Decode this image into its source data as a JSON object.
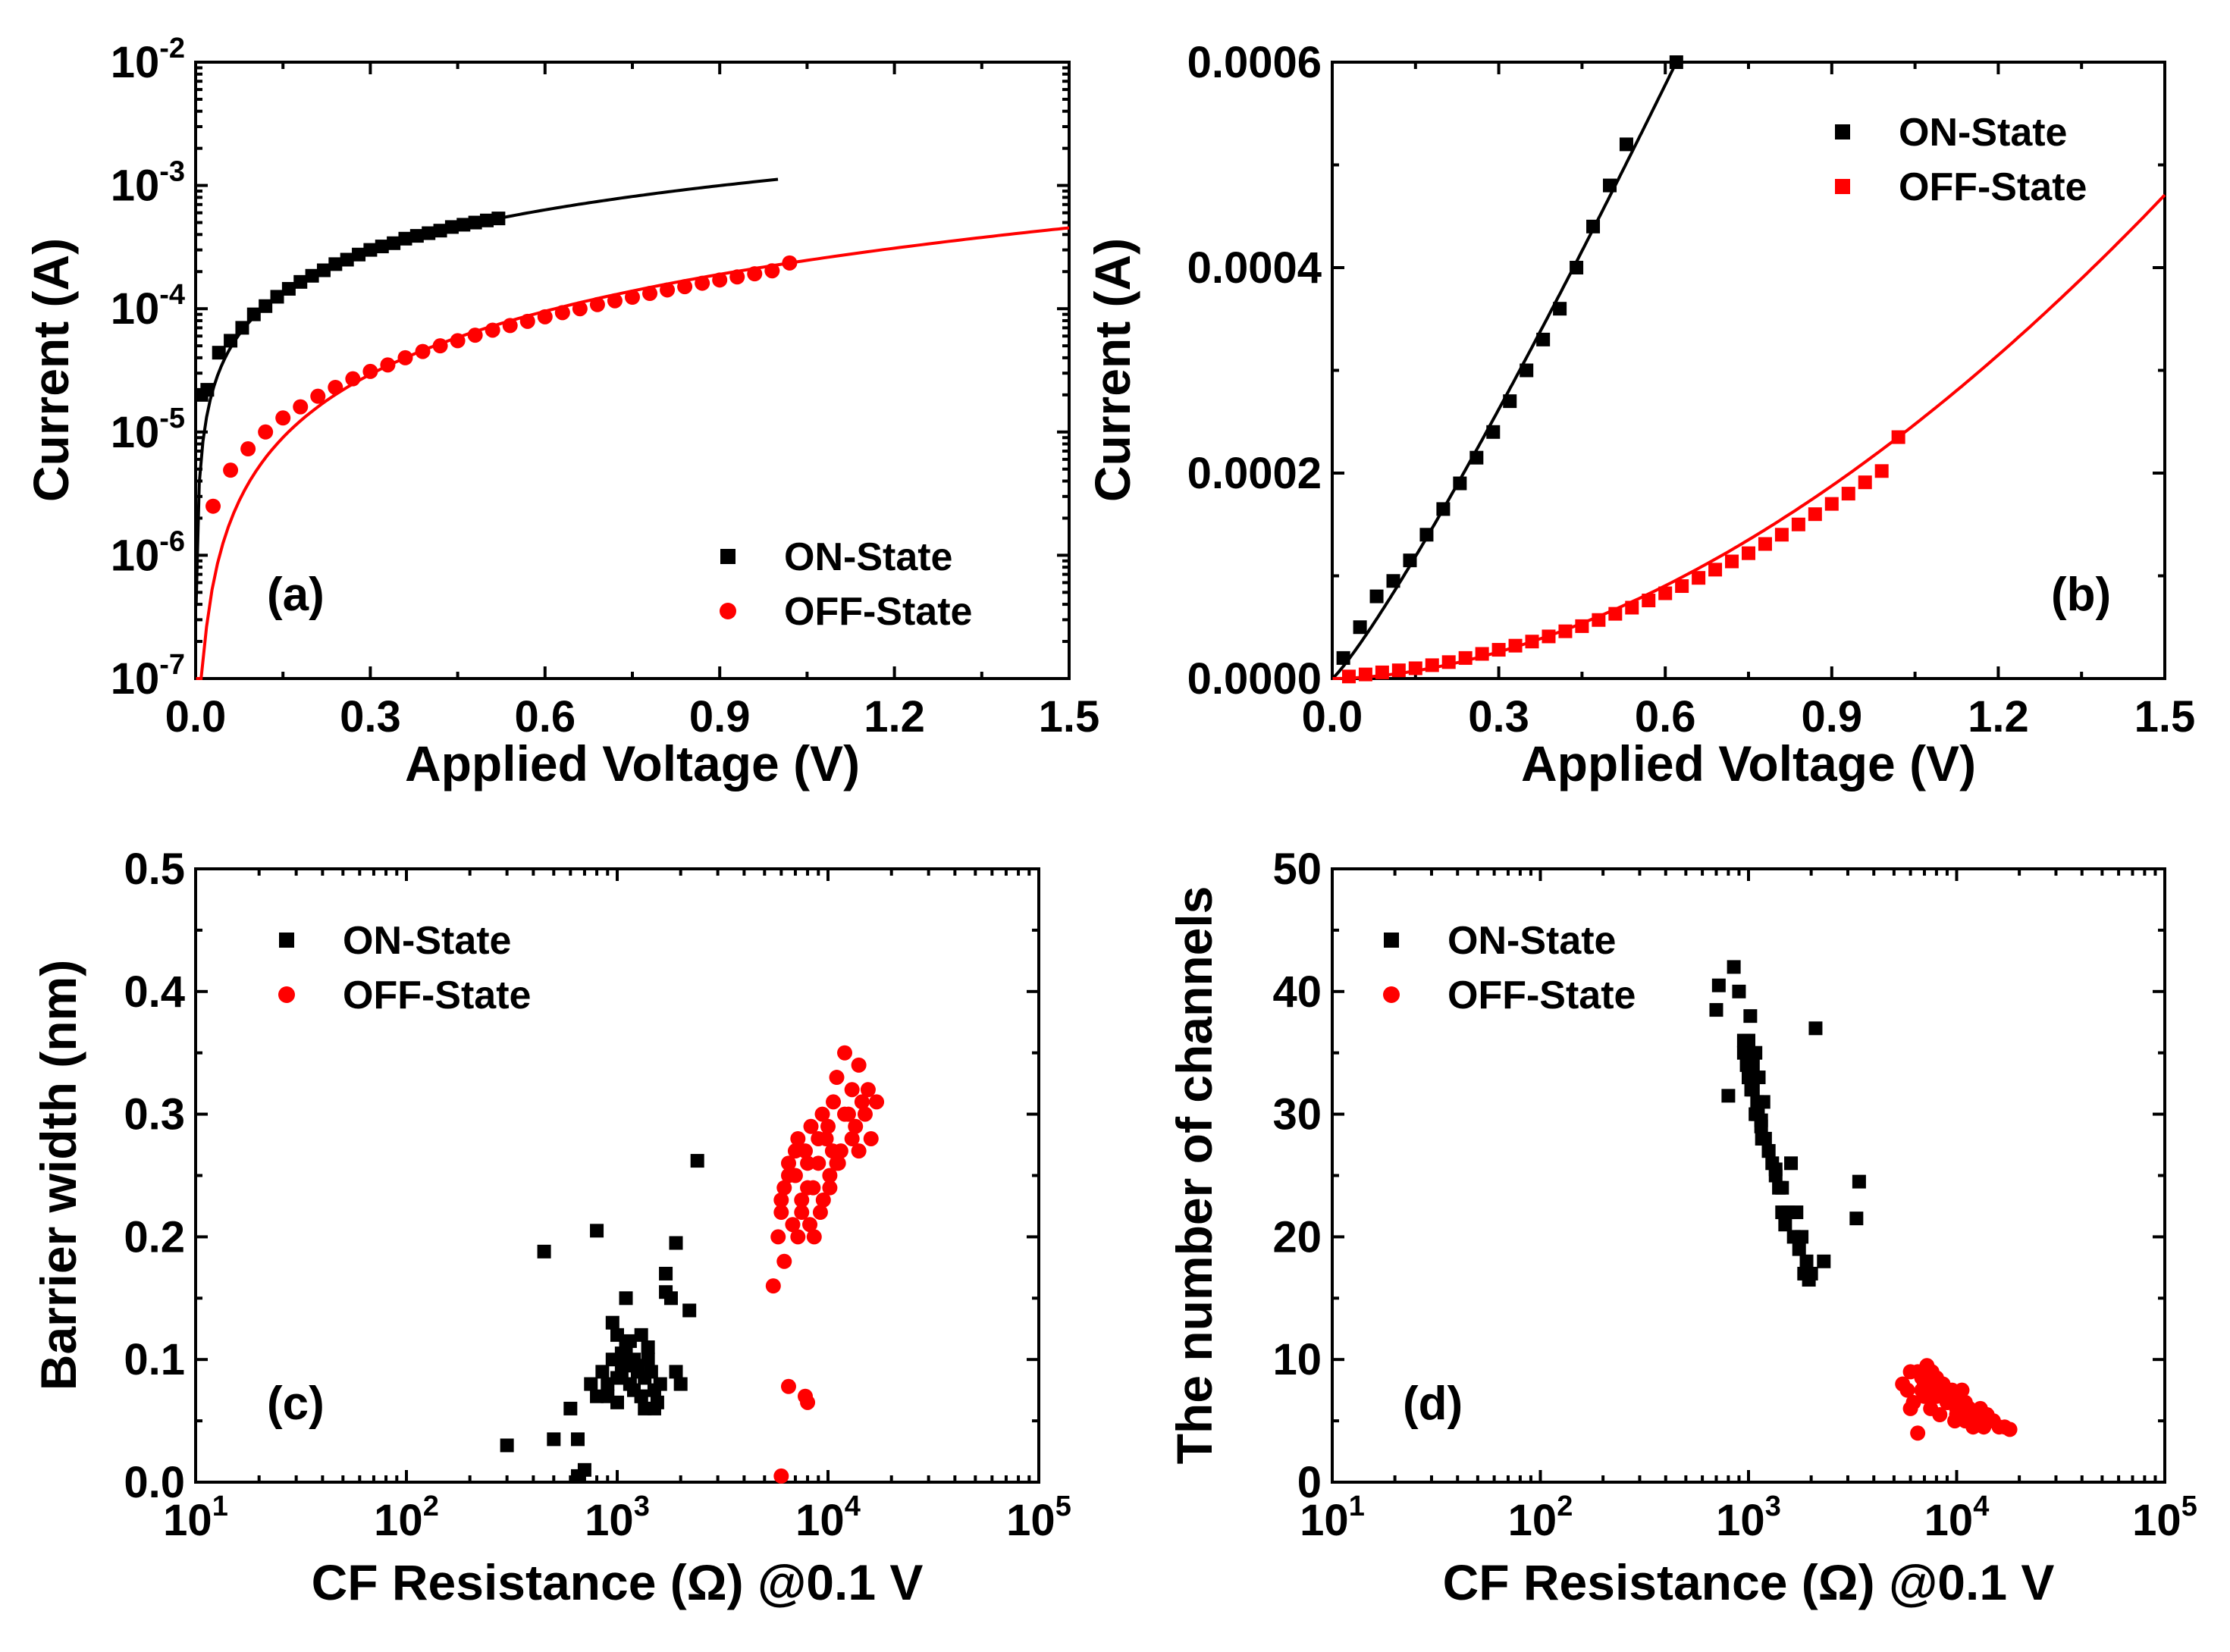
{
  "colors": {
    "on": "#000000",
    "off": "#ff0000"
  },
  "chart_data": [
    {
      "type": "scatter",
      "panel_label": "(a)",
      "xlabel": "Applied Voltage (V)",
      "ylabel": "Current (A)",
      "xlim": [
        0,
        1.5
      ],
      "ylim": [
        1e-07,
        0.01
      ],
      "yscale": "log",
      "x_ticks": [
        "0.0",
        "0.3",
        "0.6",
        "0.9",
        "1.2",
        "1.5"
      ],
      "y_ticks": [
        {
          "value": 1e-07,
          "base": "10",
          "exp": "-7"
        },
        {
          "value": 1e-06,
          "base": "10",
          "exp": "-6"
        },
        {
          "value": 1e-05,
          "base": "10",
          "exp": "-5"
        },
        {
          "value": 0.0001,
          "base": "10",
          "exp": "-4"
        },
        {
          "value": 0.001,
          "base": "10",
          "exp": "-3"
        },
        {
          "value": 0.01,
          "base": "10",
          "exp": "-2"
        }
      ],
      "legend_position": "bottom-right",
      "series": [
        {
          "name": "ON-State",
          "marker": "square",
          "color": "#000000",
          "x": [
            0.01,
            0.02,
            0.04,
            0.06,
            0.08,
            0.1,
            0.12,
            0.14,
            0.16,
            0.18,
            0.2,
            0.22,
            0.24,
            0.26,
            0.28,
            0.3,
            0.32,
            0.34,
            0.36,
            0.38,
            0.4,
            0.42,
            0.44,
            0.46,
            0.48,
            0.5,
            0.52
          ],
          "y": [
            2e-05,
            2.2e-05,
            4.4e-05,
            5.5e-05,
            7e-05,
            9e-05,
            0.000105,
            0.000125,
            0.000145,
            0.000165,
            0.000185,
            0.000205,
            0.00023,
            0.00025,
            0.000275,
            0.0003,
            0.00032,
            0.00034,
            0.00037,
            0.00039,
            0.00041,
            0.00043,
            0.00046,
            0.00048,
            0.0005,
            0.00052,
            0.00054
          ]
        },
        {
          "name": "OFF-State",
          "marker": "circle",
          "color": "#ff0000",
          "x": [
            0.03,
            0.06,
            0.09,
            0.12,
            0.15,
            0.18,
            0.21,
            0.24,
            0.27,
            0.3,
            0.33,
            0.36,
            0.39,
            0.42,
            0.45,
            0.48,
            0.51,
            0.54,
            0.57,
            0.6,
            0.63,
            0.66,
            0.69,
            0.72,
            0.75,
            0.78,
            0.81,
            0.84,
            0.87,
            0.9,
            0.93,
            0.96,
            0.99,
            1.02
          ],
          "y": [
            2.5e-06,
            4.9e-06,
            7.3e-06,
            1e-05,
            1.3e-05,
            1.6e-05,
            1.95e-05,
            2.3e-05,
            2.7e-05,
            3.1e-05,
            3.5e-05,
            4e-05,
            4.5e-05,
            5e-05,
            5.5e-05,
            6.1e-05,
            6.7e-05,
            7.3e-05,
            7.9e-05,
            8.6e-05,
            9.3e-05,
            0.0001,
            0.000108,
            0.000116,
            0.000124,
            0.000133,
            0.000142,
            0.000151,
            0.000161,
            0.000171,
            0.000181,
            0.000192,
            0.000203,
            0.000235
          ]
        }
      ],
      "fits": [
        {
          "color": "#000000",
          "x_range": [
            0.0,
            1.0
          ],
          "curve": "on"
        },
        {
          "color": "#ff0000",
          "x_range": [
            0.0,
            1.5
          ],
          "curve": "off"
        }
      ]
    },
    {
      "type": "scatter",
      "panel_label": "(b)",
      "xlabel": "Applied Voltage (V)",
      "ylabel": "Current (A)",
      "xlim": [
        0,
        1.5
      ],
      "ylim": [
        0,
        0.0006
      ],
      "yscale": "linear",
      "x_ticks": [
        "0.0",
        "0.3",
        "0.6",
        "0.9",
        "1.2",
        "1.5"
      ],
      "y_ticks": [
        "0.0000",
        "0.0002",
        "0.0004",
        "0.0006"
      ],
      "legend_position": "top-right",
      "series": [
        {
          "name": "ON-State",
          "marker": "square",
          "color": "#000000",
          "x": [
            0.02,
            0.05,
            0.08,
            0.11,
            0.14,
            0.17,
            0.2,
            0.23,
            0.26,
            0.29,
            0.32,
            0.35,
            0.38,
            0.41,
            0.44,
            0.47,
            0.5,
            0.53,
            0.62
          ],
          "y": [
            2e-05,
            5e-05,
            8e-05,
            9.5e-05,
            0.000115,
            0.00014,
            0.000165,
            0.00019,
            0.000215,
            0.00024,
            0.00027,
            0.0003,
            0.00033,
            0.00036,
            0.0004,
            0.00044,
            0.00048,
            0.00052,
            0.0006
          ]
        },
        {
          "name": "OFF-State",
          "marker": "square",
          "color": "#ff0000",
          "x": [
            0.03,
            0.06,
            0.09,
            0.12,
            0.15,
            0.18,
            0.21,
            0.24,
            0.27,
            0.3,
            0.33,
            0.36,
            0.39,
            0.42,
            0.45,
            0.48,
            0.51,
            0.54,
            0.57,
            0.6,
            0.63,
            0.66,
            0.69,
            0.72,
            0.75,
            0.78,
            0.81,
            0.84,
            0.87,
            0.9,
            0.93,
            0.96,
            0.99,
            1.02
          ],
          "y": [
            2e-06,
            4e-06,
            6e-06,
            8e-06,
            1e-05,
            1.3e-05,
            1.6e-05,
            2e-05,
            2.4e-05,
            2.8e-05,
            3.2e-05,
            3.6e-05,
            4.1e-05,
            4.6e-05,
            5.1e-05,
            5.7e-05,
            6.3e-05,
            6.9e-05,
            7.6e-05,
            8.3e-05,
            9e-05,
            9.8e-05,
            0.000106,
            0.000114,
            0.000122,
            0.000131,
            0.00014,
            0.00015,
            0.00016,
            0.00017,
            0.00018,
            0.000191,
            0.000202,
            0.000235
          ]
        }
      ],
      "fits": [
        {
          "color": "#000000",
          "x_range": [
            0.0,
            0.62
          ],
          "curve": "on"
        },
        {
          "color": "#ff0000",
          "x_range": [
            0.0,
            1.5
          ],
          "curve": "off"
        }
      ]
    },
    {
      "type": "scatter",
      "panel_label": "(c)",
      "xlabel": "CF Resistance (Ω) @0.1 V",
      "ylabel": "Barrier width (nm)",
      "xscale": "log",
      "xlim": [
        10,
        100000
      ],
      "ylim": [
        0,
        0.5
      ],
      "x_ticks": [
        {
          "value": 10,
          "base": "10",
          "exp": "1"
        },
        {
          "value": 100,
          "base": "10",
          "exp": "2"
        },
        {
          "value": 1000,
          "base": "10",
          "exp": "3"
        },
        {
          "value": 10000,
          "base": "10",
          "exp": "4"
        },
        {
          "value": 100000,
          "base": "10",
          "exp": "5"
        }
      ],
      "y_ticks": [
        "0.0",
        "0.1",
        "0.2",
        "0.3",
        "0.4",
        "0.5"
      ],
      "legend_position": "top-left",
      "series": [
        {
          "name": "ON-State",
          "marker": "square",
          "color": "#000000",
          "x": [
            300,
            450,
            500,
            600,
            650,
            700,
            750,
            800,
            850,
            900,
            950,
            1000,
            1050,
            1100,
            1150,
            1200,
            1250,
            1300,
            1350,
            1400,
            1450,
            1500,
            1550,
            1600,
            1700,
            1800,
            1900,
            2000,
            2200,
            2400,
            800,
            900,
            1000,
            1100,
            1200,
            1300,
            1000,
            1100,
            1200,
            1300,
            1400,
            1500,
            950,
            1050,
            1150,
            1250,
            1350,
            1700,
            1900,
            650
          ],
          "y": [
            0.03,
            0.188,
            0.035,
            0.06,
            0.035,
            0.01,
            0.08,
            0.205,
            0.09,
            0.07,
            0.1,
            0.12,
            0.09,
            0.15,
            0.08,
            0.1,
            0.095,
            0.07,
            0.085,
            0.11,
            0.09,
            0.075,
            0.065,
            0.08,
            0.17,
            0.15,
            0.195,
            0.08,
            0.14,
            0.262,
            0.07,
            0.08,
            0.085,
            0.1,
            0.075,
            0.12,
            0.065,
            0.11,
            0.095,
            0.07,
            0.1,
            0.06,
            0.13,
            0.105,
            0.115,
            0.09,
            0.06,
            0.155,
            0.09,
            0.005
          ]
        },
        {
          "name": "OFF-State",
          "marker": "circle",
          "color": "#ff0000",
          "x": [
            5500,
            5800,
            6000,
            6200,
            6500,
            6800,
            7000,
            7200,
            7500,
            7800,
            8000,
            8300,
            8600,
            9000,
            9400,
            9800,
            10200,
            10600,
            11000,
            11500,
            12000,
            12500,
            13000,
            13500,
            14000,
            14500,
            15000,
            15500,
            16000,
            17000,
            6000,
            6500,
            7000,
            7500,
            8000,
            8500,
            9000,
            9500,
            10000,
            10500,
            11000,
            12000,
            13000,
            14000,
            6200,
            7200,
            8200,
            9200,
            10200,
            11200,
            6000,
            6500,
            7800,
            8000
          ],
          "y": [
            0.16,
            0.2,
            0.22,
            0.24,
            0.26,
            0.21,
            0.25,
            0.28,
            0.23,
            0.27,
            0.24,
            0.29,
            0.2,
            0.26,
            0.3,
            0.28,
            0.25,
            0.31,
            0.33,
            0.27,
            0.35,
            0.3,
            0.32,
            0.29,
            0.34,
            0.31,
            0.3,
            0.32,
            0.28,
            0.31,
            0.23,
            0.25,
            0.27,
            0.22,
            0.26,
            0.24,
            0.28,
            0.23,
            0.29,
            0.27,
            0.26,
            0.3,
            0.28,
            0.27,
            0.18,
            0.2,
            0.21,
            0.22,
            0.24,
            0.26,
            0.005,
            0.078,
            0.07,
            0.065
          ]
        }
      ]
    },
    {
      "type": "scatter",
      "panel_label": "(d)",
      "xlabel": "CF Resistance (Ω) @0.1 V",
      "ylabel": "The number of channels",
      "xscale": "log",
      "xlim": [
        10,
        100000
      ],
      "ylim": [
        0,
        50
      ],
      "x_ticks": [
        {
          "value": 10,
          "base": "10",
          "exp": "1"
        },
        {
          "value": 100,
          "base": "10",
          "exp": "2"
        },
        {
          "value": 1000,
          "base": "10",
          "exp": "3"
        },
        {
          "value": 10000,
          "base": "10",
          "exp": "4"
        },
        {
          "value": 100000,
          "base": "10",
          "exp": "5"
        }
      ],
      "y_ticks": [
        "0",
        "10",
        "20",
        "30",
        "40",
        "50"
      ],
      "legend_position": "top-left",
      "series": [
        {
          "name": "ON-State",
          "marker": "square",
          "color": "#000000",
          "x": [
            700,
            720,
            800,
            850,
            900,
            950,
            980,
            1000,
            1020,
            1050,
            1080,
            1100,
            1120,
            1150,
            1180,
            1200,
            1250,
            1300,
            1350,
            1400,
            1450,
            1500,
            1600,
            1700,
            1800,
            1900,
            2000,
            2100,
            2300,
            3300,
            3400,
            1000,
            1050,
            1100,
            1150,
            1200,
            1000,
            1080,
            1160,
            1250,
            1350,
            1450,
            1550,
            1650,
            1750,
            1850,
            1950,
            950,
            1030,
            1110
          ],
          "y": [
            38.5,
            40.5,
            31.5,
            42,
            40,
            36,
            34,
            33,
            38,
            32,
            35,
            30,
            33,
            29,
            31,
            28,
            27,
            26,
            25,
            24,
            22,
            21,
            26,
            22,
            20,
            18,
            17,
            37,
            18,
            21.5,
            24.5,
            36,
            34,
            31,
            29.5,
            28,
            33,
            30,
            28,
            27,
            25.5,
            24,
            22,
            20,
            19,
            17,
            16.5,
            35,
            32,
            30
          ]
        },
        {
          "name": "OFF-State",
          "marker": "circle",
          "color": "#ff0000",
          "x": [
            5500,
            5800,
            6000,
            6200,
            6500,
            6800,
            7000,
            7200,
            7500,
            7800,
            8000,
            8300,
            8600,
            9000,
            9400,
            9800,
            10200,
            10600,
            11000,
            11500,
            12000,
            12500,
            13000,
            13500,
            14000,
            15000,
            16000,
            17000,
            18000,
            6500,
            7000,
            7500,
            8000,
            8500,
            9000,
            9500,
            10000,
            10500,
            11000,
            12000,
            6000,
            6800,
            7600,
            8400,
            9200,
            10000,
            11000,
            12000,
            13000,
            14000
          ],
          "y": [
            8,
            7.5,
            9,
            6.5,
            4,
            8.5,
            7,
            9.5,
            6,
            8,
            7,
            5.5,
            8,
            6.5,
            7,
            5,
            6,
            7.5,
            5.5,
            6,
            4.5,
            5,
            6,
            4.5,
            5.5,
            5,
            4.5,
            4.5,
            4.3,
            9,
            8,
            7.5,
            8.5,
            7,
            6.5,
            7.5,
            6,
            6.5,
            5,
            5.5,
            6,
            7.5,
            9,
            8,
            7,
            5.5,
            6.5,
            4.8,
            5.2,
            5
          ]
        }
      ]
    }
  ]
}
